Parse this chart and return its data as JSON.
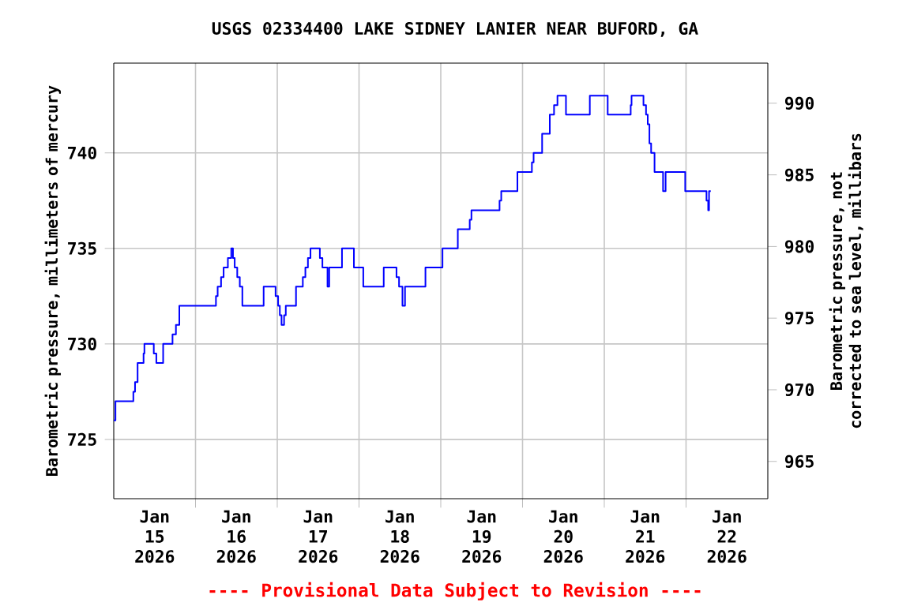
{
  "chart_data": {
    "type": "step",
    "title": "USGS 02334400 LAKE SIDNEY LANIER NEAR BUFORD, GA",
    "ylabel": "Barometric pressure, millimeters of mercury",
    "y2label": "Barometric pressure, not corrected to sea level, millibars",
    "annotations": [
      "---- Provisional Data Subject to Revision ----"
    ],
    "x": [
      "2026-01-15T00:00",
      "2026-01-15T00:30",
      "2026-01-15T05:45",
      "2026-01-15T06:15",
      "2026-01-15T07:00",
      "2026-01-15T08:45",
      "2026-01-15T09:00",
      "2026-01-15T11:45",
      "2026-01-15T12:30",
      "2026-01-15T14:30",
      "2026-01-15T17:15",
      "2026-01-15T18:15",
      "2026-01-15T19:15",
      "2026-01-16T06:00",
      "2026-01-16T06:30",
      "2026-01-16T07:30",
      "2026-01-16T08:15",
      "2026-01-16T09:30",
      "2026-01-16T10:30",
      "2026-01-16T11:00",
      "2026-01-16T11:30",
      "2026-01-16T12:15",
      "2026-01-16T13:00",
      "2026-01-16T13:45",
      "2026-01-16T20:00",
      "2026-01-16T23:30",
      "2026-01-17T00:15",
      "2026-01-17T00:45",
      "2026-01-17T01:15",
      "2026-01-17T02:00",
      "2026-01-17T02:30",
      "2026-01-17T05:30",
      "2026-01-17T07:30",
      "2026-01-17T08:15",
      "2026-01-17T09:00",
      "2026-01-17T09:45",
      "2026-01-17T12:30",
      "2026-01-17T13:15",
      "2026-01-17T14:45",
      "2026-01-17T15:15",
      "2026-01-17T19:00",
      "2026-01-17T22:30",
      "2026-01-18T01:15",
      "2026-01-18T07:15",
      "2026-01-18T11:00",
      "2026-01-18T11:45",
      "2026-01-18T12:45",
      "2026-01-18T13:30",
      "2026-01-18T19:30",
      "2026-01-19T00:30",
      "2026-01-19T05:00",
      "2026-01-19T08:30",
      "2026-01-19T09:00",
      "2026-01-19T17:15",
      "2026-01-19T17:45",
      "2026-01-19T22:30",
      "2026-01-20T02:45",
      "2026-01-20T03:15",
      "2026-01-20T05:45",
      "2026-01-20T08:00",
      "2026-01-20T09:15",
      "2026-01-20T10:15",
      "2026-01-20T12:45",
      "2026-01-20T19:45",
      "2026-01-21T01:00",
      "2026-01-21T07:45",
      "2026-01-21T08:00",
      "2026-01-21T11:30",
      "2026-01-21T12:15",
      "2026-01-21T12:45",
      "2026-01-21T13:15",
      "2026-01-21T13:45",
      "2026-01-21T14:45",
      "2026-01-21T17:15",
      "2026-01-21T18:00",
      "2026-01-21T23:45",
      "2026-01-22T06:00",
      "2026-01-22T06:30",
      "2026-01-22T06:45",
      "2026-01-22T07:15"
    ],
    "series": [
      {
        "color": "#0000ff",
        "values": [
          726,
          727,
          727.5,
          728,
          729,
          729.5,
          730,
          729.5,
          729,
          730,
          730.5,
          731,
          732,
          732.5,
          733,
          733.5,
          734,
          734.5,
          735,
          734.5,
          734,
          733.5,
          733,
          732,
          733,
          732.5,
          732,
          731.5,
          731,
          731.5,
          732,
          733,
          733.5,
          734,
          734.5,
          735,
          734.5,
          734,
          733,
          734,
          735,
          734,
          733,
          734,
          733.5,
          733,
          732,
          733,
          734,
          735,
          736,
          736.5,
          737,
          737.5,
          738,
          739,
          739.5,
          740,
          741,
          742,
          742.5,
          743,
          742,
          743,
          742,
          742.5,
          743,
          742.5,
          742,
          741.5,
          740.5,
          740,
          739,
          738,
          739,
          738,
          737.5,
          737,
          738,
          738
        ]
      }
    ],
    "xlim": [
      "2026-01-15T00:00",
      "2026-01-23T00:00"
    ],
    "xticks": [
      {
        "value": "2026-01-15T12:00",
        "label": "Jan 15 2026"
      },
      {
        "value": "2026-01-16T12:00",
        "label": "Jan 16 2026"
      },
      {
        "value": "2026-01-17T12:00",
        "label": "Jan 17 2026"
      },
      {
        "value": "2026-01-18T12:00",
        "label": "Jan 18 2026"
      },
      {
        "value": "2026-01-19T12:00",
        "label": "Jan 19 2026"
      },
      {
        "value": "2026-01-20T12:00",
        "label": "Jan 20 2026"
      },
      {
        "value": "2026-01-21T12:00",
        "label": "Jan 21 2026"
      },
      {
        "value": "2026-01-22T12:00",
        "label": "Jan 22 2026"
      },
      {
        "value": "2026-01-16T00:00",
        "label": null
      },
      {
        "value": "2026-01-17T00:00",
        "label": null
      },
      {
        "value": "2026-01-18T00:00",
        "label": null
      },
      {
        "value": "2026-01-19T00:00",
        "label": null
      },
      {
        "value": "2026-01-20T00:00",
        "label": null
      },
      {
        "value": "2026-01-21T00:00",
        "label": null
      },
      {
        "value": "2026-01-22T00:00",
        "label": null
      }
    ],
    "ylim": [
      721.9,
      744.7
    ],
    "yticks": [
      725,
      730,
      735,
      740
    ],
    "y2lim": [
      962.4,
      992.8
    ],
    "y2ticks": [
      965,
      970,
      975,
      980,
      985,
      990
    ],
    "grid": true,
    "marker": "none",
    "line_style": "solid"
  }
}
